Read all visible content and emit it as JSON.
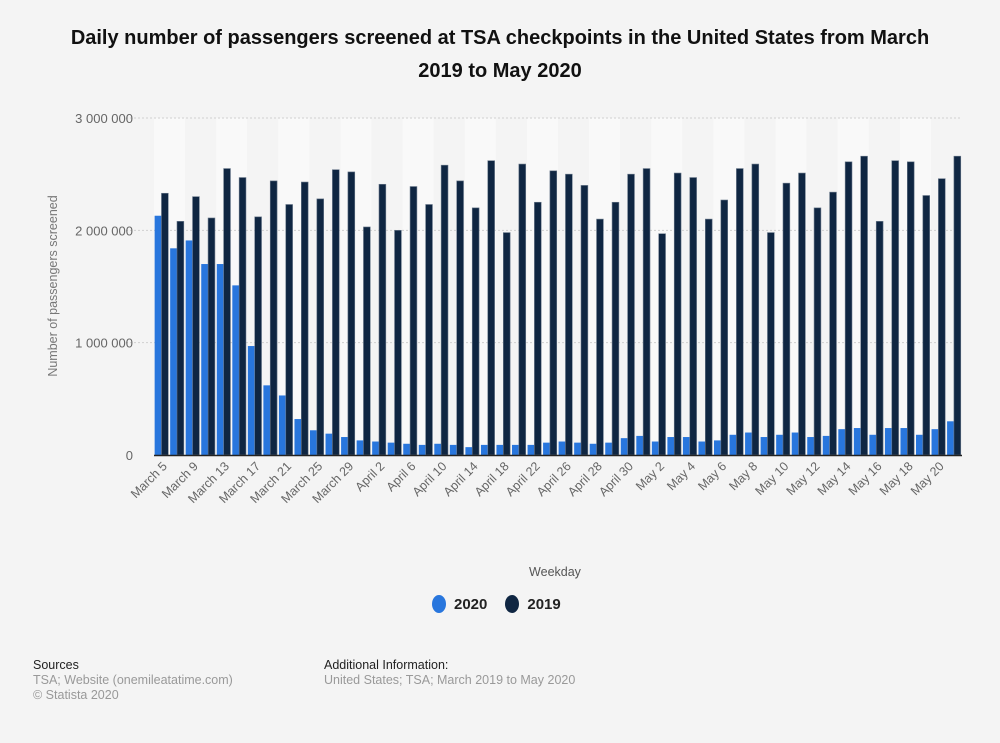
{
  "title": "Daily number of passengers screened at TSA checkpoints in the United States from March 2019 to May 2020",
  "chart_data": {
    "type": "bar",
    "title": "Daily number of passengers screened at TSA checkpoints in the United States from March 2019 to May 2020",
    "xlabel": "Weekday",
    "ylabel": "Number of passengers screened",
    "ylim": [
      0,
      3000000
    ],
    "yticks": [
      0,
      1000000,
      2000000,
      3000000
    ],
    "ytick_labels": [
      "0",
      "1 000 000",
      "2 000 000",
      "3 000 000"
    ],
    "grid": true,
    "legend_position": "bottom-center",
    "categories": [
      "March 5",
      "",
      "March 9",
      "",
      "March 13",
      "",
      "March 17",
      "",
      "March 21",
      "",
      "March 25",
      "",
      "March 29",
      "",
      "April 2",
      "",
      "April 6",
      "",
      "April 10",
      "",
      "April 14",
      "",
      "April 18",
      "",
      "April 22",
      "",
      "April 26",
      "",
      "April 28",
      "",
      "April 30",
      "",
      "May 2",
      "",
      "May 4",
      "",
      "May 6",
      "",
      "May 8",
      "",
      "May 10",
      "",
      "May 12",
      "",
      "May 14",
      "",
      "May 16",
      "",
      "May 18",
      "",
      "May 20",
      ""
    ],
    "series": [
      {
        "name": "2020",
        "color": "#2876dd",
        "values": [
          2130000,
          1840000,
          1910000,
          1700000,
          1700000,
          1510000,
          970000,
          620000,
          530000,
          320000,
          220000,
          190000,
          160000,
          130000,
          120000,
          110000,
          100000,
          90000,
          100000,
          90000,
          70000,
          90000,
          90000,
          90000,
          90000,
          110000,
          120000,
          110000,
          100000,
          110000,
          150000,
          170000,
          120000,
          160000,
          160000,
          120000,
          130000,
          180000,
          200000,
          160000,
          180000,
          200000,
          160000,
          170000,
          230000,
          240000,
          180000,
          240000,
          240000,
          180000,
          230000,
          300000
        ]
      },
      {
        "name": "2019",
        "color": "#0f2642",
        "values": [
          2330000,
          2080000,
          2300000,
          2110000,
          2550000,
          2470000,
          2120000,
          2440000,
          2230000,
          2430000,
          2280000,
          2540000,
          2520000,
          2030000,
          2410000,
          2000000,
          2390000,
          2230000,
          2580000,
          2440000,
          2200000,
          2620000,
          1980000,
          2590000,
          2250000,
          2530000,
          2500000,
          2400000,
          2100000,
          2250000,
          2500000,
          2550000,
          1970000,
          2510000,
          2470000,
          2100000,
          2270000,
          2550000,
          2590000,
          1980000,
          2420000,
          2510000,
          2200000,
          2340000,
          2610000,
          2660000,
          2080000,
          2620000,
          2610000,
          2310000,
          2460000,
          2660000
        ]
      }
    ]
  },
  "legend": [
    {
      "label": "2020",
      "color": "#2876dd"
    },
    {
      "label": "2019",
      "color": "#0f2642"
    }
  ],
  "footer": {
    "sources_heading": "Sources",
    "sources_line1": "TSA; Website (onemileatatime.com)",
    "sources_line2": "© Statista 2020",
    "info_heading": "Additional Information:",
    "info_line1": "United States; TSA; March 2019 to May 2020"
  }
}
